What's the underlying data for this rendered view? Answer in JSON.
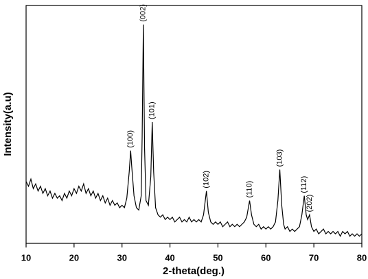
{
  "chart_data": {
    "type": "line",
    "xlabel": "2-theta(deg.)",
    "ylabel": "Intensity(a.u)",
    "x": [
      10,
      10.5,
      11,
      11.5,
      12,
      12.5,
      13,
      13.5,
      14,
      14.5,
      15,
      15.5,
      16,
      16.5,
      17,
      17.5,
      18,
      18.5,
      19,
      19.5,
      20,
      20.5,
      21,
      21.5,
      22,
      22.5,
      23,
      23.5,
      24,
      24.5,
      25,
      25.5,
      26,
      26.5,
      27,
      27.5,
      28,
      28.5,
      29,
      29.5,
      30,
      30.5,
      31,
      31.5,
      31.8,
      32,
      32.5,
      33,
      33.5,
      34,
      34.2,
      34.45,
      34.7,
      35,
      35.5,
      36,
      36.3,
      36.6,
      37,
      37.5,
      38,
      38.5,
      39,
      39.5,
      40,
      40.5,
      41,
      41.5,
      42,
      42.5,
      43,
      43.5,
      44,
      44.5,
      45,
      45.5,
      46,
      46.5,
      47,
      47.6,
      48,
      48.5,
      49,
      49.5,
      50,
      50.5,
      51,
      51.5,
      52,
      52.5,
      53,
      53.5,
      54,
      54.5,
      55,
      55.5,
      56,
      56.6,
      57,
      57.5,
      58,
      58.5,
      59,
      59.5,
      60,
      60.5,
      61,
      61.5,
      62,
      62.5,
      62.9,
      63.3,
      63.7,
      64,
      64.5,
      65,
      65.5,
      66,
      66.5,
      67,
      67.5,
      68,
      68.4,
      68.7,
      69.1,
      69.5,
      70,
      70.5,
      71,
      71.5,
      72,
      72.5,
      73,
      73.5,
      74,
      74.5,
      75,
      75.5,
      76,
      76.5,
      77,
      77.5,
      78,
      78.5,
      79,
      79.5,
      80
    ],
    "values": [
      26,
      24,
      27,
      23,
      25,
      22,
      24,
      21,
      23,
      20,
      22,
      19,
      21,
      19,
      20,
      18,
      21,
      19,
      22,
      20,
      23,
      21,
      24,
      22,
      25,
      21,
      23,
      20,
      22,
      19,
      21,
      18,
      20,
      17,
      19,
      16,
      18,
      16,
      17,
      15,
      16,
      15,
      19,
      30,
      39,
      33,
      20,
      15,
      14,
      20,
      45,
      92,
      40,
      18,
      16,
      28,
      51,
      30,
      15,
      12,
      11,
      12,
      10,
      11,
      10,
      11,
      9,
      10,
      11,
      9,
      10,
      9,
      11,
      9,
      10,
      9,
      10,
      9,
      12,
      22,
      13,
      9,
      8,
      9,
      8,
      9,
      7,
      8,
      9,
      7,
      8,
      7,
      8,
      7,
      8,
      9,
      11,
      18,
      12,
      8,
      7,
      8,
      6,
      7,
      6,
      7,
      6,
      7,
      9,
      18,
      31,
      16,
      8,
      6,
      7,
      5,
      6,
      5,
      6,
      7,
      12,
      20,
      12,
      10,
      12,
      7,
      5,
      6,
      4,
      5,
      6,
      4,
      5,
      4,
      5,
      4,
      5,
      3,
      5,
      4,
      5,
      3,
      4,
      3,
      4,
      3,
      4
    ],
    "color": "#000000",
    "xlim": [
      10,
      80
    ],
    "xticks": [
      10,
      20,
      30,
      40,
      50,
      60,
      70,
      80
    ],
    "ylim": [
      0,
      100
    ],
    "annotations": [
      {
        "text": "(100)",
        "x": 31.8
      },
      {
        "text": "(002)",
        "x": 34.45
      },
      {
        "text": "(101)",
        "x": 36.3
      },
      {
        "text": "(102)",
        "x": 47.6
      },
      {
        "text": "(110)",
        "x": 56.6
      },
      {
        "text": "(103)",
        "x": 62.9
      },
      {
        "text": "(112)",
        "x": 68
      },
      {
        "text": "(202)",
        "x": 69.1
      }
    ]
  }
}
